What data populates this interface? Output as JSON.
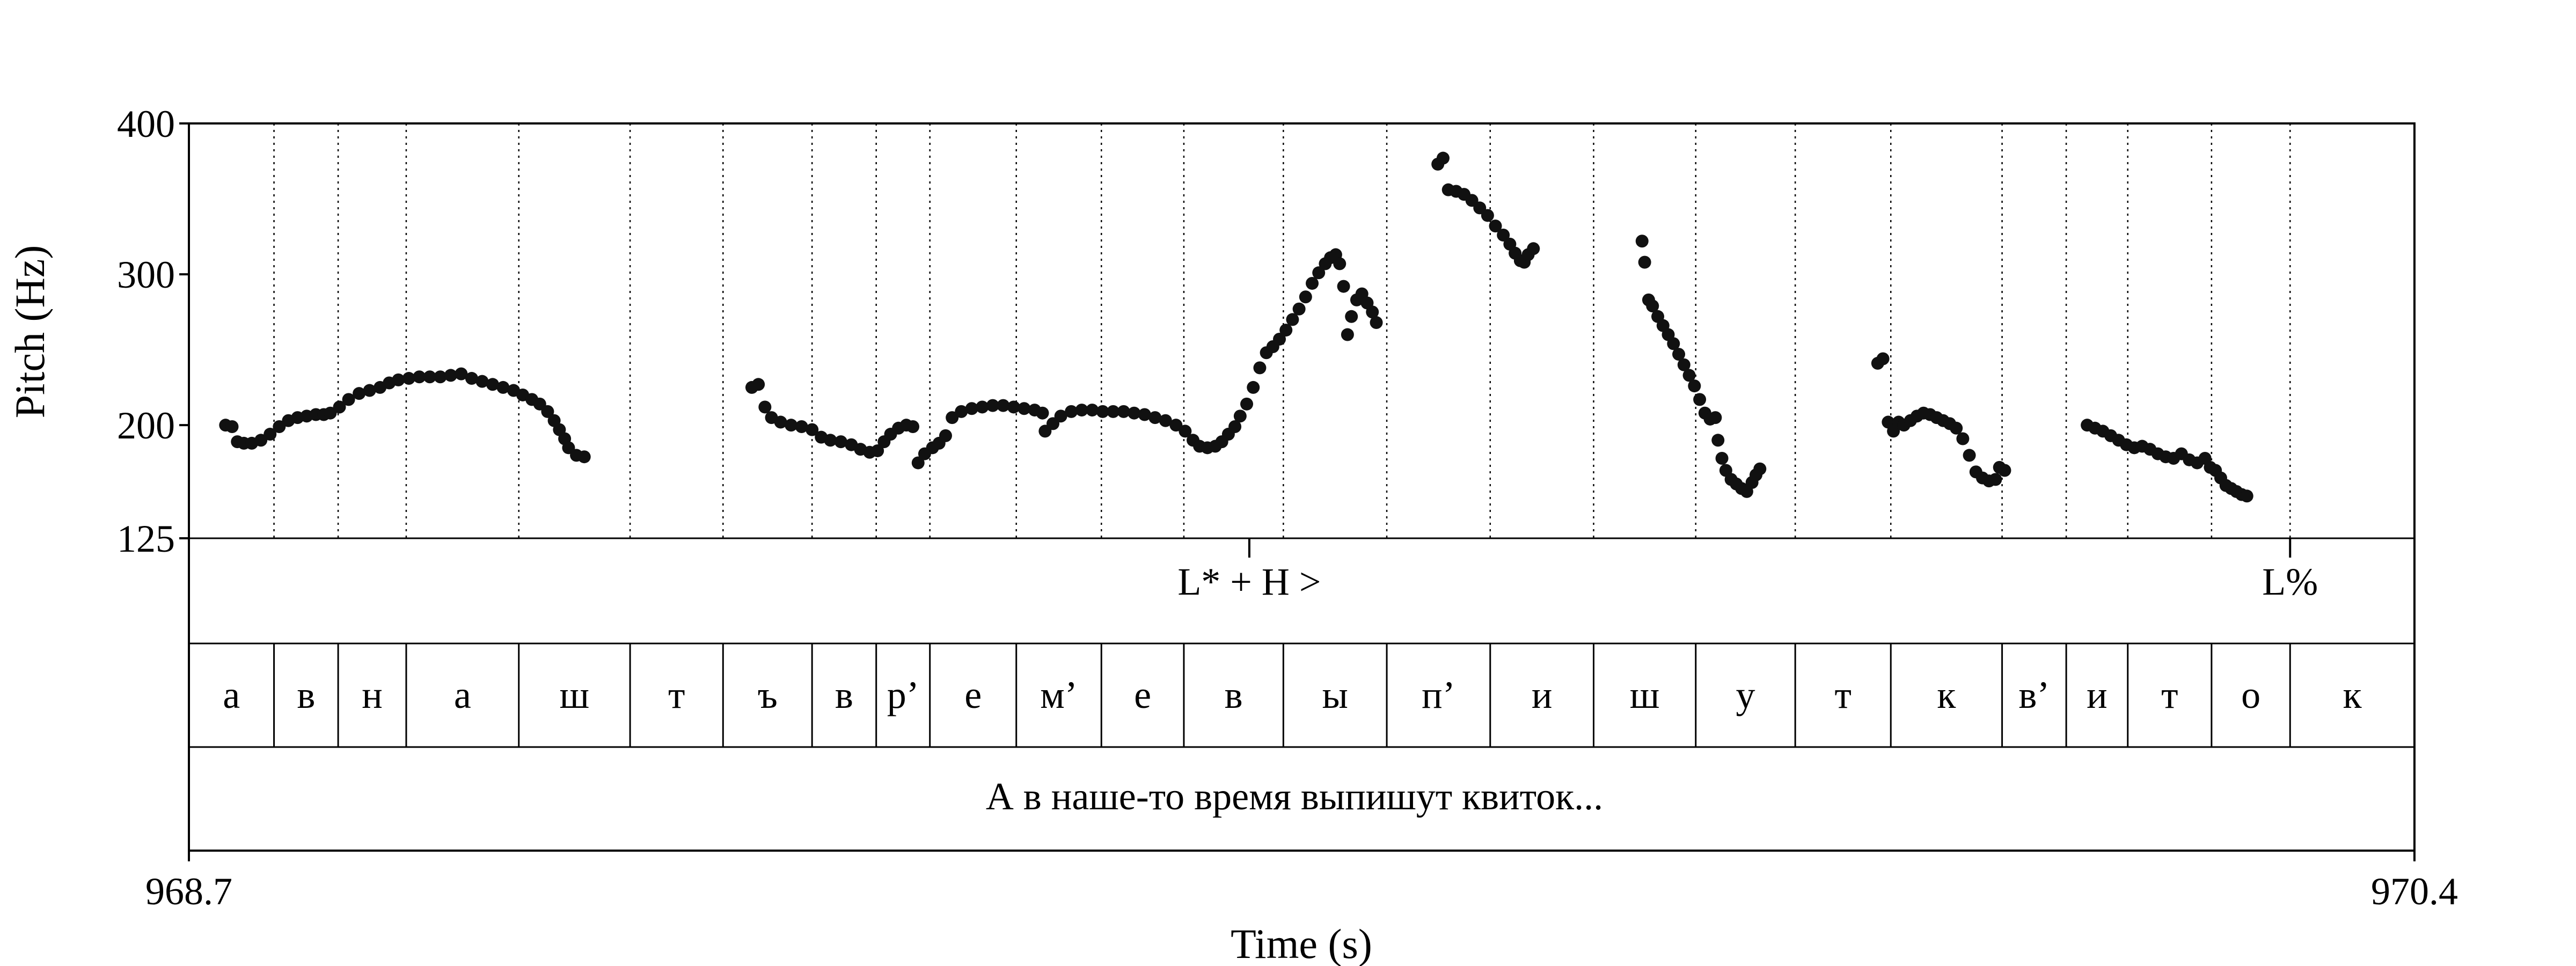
{
  "chart_data": {
    "type": "scatter",
    "xlabel": "Time (s)",
    "ylabel": "Pitch (Hz)",
    "xlim": [
      968.7,
      970.4
    ],
    "ylim": [
      125,
      400
    ],
    "x_edge_labels": [
      "968.7",
      "970.4"
    ],
    "y_ticks": [
      {
        "value": 400,
        "label": "400"
      },
      {
        "value": 300,
        "label": "300"
      },
      {
        "value": 200,
        "label": "200"
      },
      {
        "value": 125,
        "label": "125"
      }
    ],
    "boundaries": [
      968.765,
      968.814,
      968.866,
      968.952,
      969.037,
      969.108,
      969.176,
      969.225,
      969.266,
      969.332,
      969.397,
      969.46,
      969.536,
      969.615,
      969.694,
      969.773,
      969.851,
      969.927,
      970.0,
      970.085,
      970.134,
      970.181,
      970.245,
      970.305
    ],
    "segments": [
      "а",
      "в",
      "н",
      "а",
      "ш",
      "т",
      "ъ",
      "в",
      "р’",
      "е",
      "м’",
      "е",
      "в",
      "ы",
      "п’",
      "и",
      "ш",
      "у",
      "т",
      "к",
      "в’",
      "и",
      "т",
      "о",
      "к"
    ],
    "tones": [
      {
        "t": 969.51,
        "label": "L* + H >"
      },
      {
        "t": 970.305,
        "label": "L%"
      }
    ],
    "sentence": "А в наше-то время выпишут квиток...",
    "series": [
      {
        "points": [
          [
            968.728,
            200
          ],
          [
            968.733,
            199
          ],
          [
            968.737,
            189
          ],
          [
            968.742,
            188
          ],
          [
            968.748,
            188
          ],
          [
            968.755,
            190
          ],
          [
            968.762,
            194
          ],
          [
            968.769,
            199
          ],
          [
            968.776,
            203
          ],
          [
            968.783,
            205
          ],
          [
            968.79,
            206
          ],
          [
            968.797,
            207
          ],
          [
            968.803,
            207
          ],
          [
            968.808,
            208
          ],
          [
            968.815,
            212
          ],
          [
            968.822,
            217
          ],
          [
            968.83,
            221
          ],
          [
            968.838,
            223
          ],
          [
            968.846,
            225
          ],
          [
            968.853,
            228
          ],
          [
            968.86,
            230
          ],
          [
            968.868,
            231
          ],
          [
            968.876,
            232
          ],
          [
            968.884,
            232
          ],
          [
            968.892,
            232
          ],
          [
            968.9,
            233
          ],
          [
            968.908,
            234
          ],
          [
            968.916,
            231
          ],
          [
            968.924,
            229
          ],
          [
            968.932,
            227
          ],
          [
            968.94,
            225
          ],
          [
            968.948,
            223
          ],
          [
            968.955,
            220
          ],
          [
            968.962,
            217
          ],
          [
            968.968,
            214
          ],
          [
            968.974,
            209
          ],
          [
            968.979,
            203
          ],
          [
            968.983,
            197
          ],
          [
            968.987,
            191
          ],
          [
            968.99,
            185
          ],
          [
            968.996,
            180
          ],
          [
            969.002,
            179
          ]
        ]
      },
      {
        "points": [
          [
            969.13,
            225
          ],
          [
            969.135,
            227
          ],
          [
            969.14,
            212
          ],
          [
            969.145,
            205
          ],
          [
            969.152,
            202
          ],
          [
            969.16,
            200
          ],
          [
            969.168,
            199
          ],
          [
            969.176,
            197
          ],
          [
            969.183,
            192
          ],
          [
            969.19,
            190
          ],
          [
            969.198,
            189
          ],
          [
            969.206,
            187
          ],
          [
            969.213,
            184
          ],
          [
            969.22,
            182
          ],
          [
            969.226,
            183
          ],
          [
            969.231,
            189
          ],
          [
            969.236,
            194
          ],
          [
            969.242,
            198
          ],
          [
            969.248,
            200
          ],
          [
            969.253,
            199
          ],
          [
            969.257,
            175
          ],
          [
            969.262,
            181
          ],
          [
            969.268,
            185
          ],
          [
            969.273,
            188
          ],
          [
            969.278,
            193
          ],
          [
            969.283,
            205
          ],
          [
            969.29,
            209
          ],
          [
            969.298,
            211
          ],
          [
            969.306,
            212
          ],
          [
            969.314,
            213
          ],
          [
            969.322,
            213
          ],
          [
            969.33,
            212
          ],
          [
            969.338,
            211
          ],
          [
            969.346,
            210
          ],
          [
            969.352,
            208
          ],
          [
            969.354,
            196
          ],
          [
            969.36,
            201
          ],
          [
            969.366,
            206
          ],
          [
            969.374,
            209
          ],
          [
            969.382,
            210
          ],
          [
            969.39,
            210
          ],
          [
            969.398,
            209
          ],
          [
            969.406,
            209
          ],
          [
            969.414,
            209
          ],
          [
            969.422,
            208
          ],
          [
            969.43,
            207
          ],
          [
            969.438,
            205
          ],
          [
            969.446,
            203
          ],
          [
            969.454,
            200
          ],
          [
            969.461,
            196
          ],
          [
            969.467,
            190
          ],
          [
            969.472,
            186
          ],
          [
            969.478,
            185
          ],
          [
            969.484,
            186
          ],
          [
            969.489,
            189
          ],
          [
            969.494,
            194
          ],
          [
            969.499,
            199
          ],
          [
            969.503,
            206
          ],
          [
            969.508,
            214
          ],
          [
            969.513,
            225
          ],
          [
            969.518,
            238
          ],
          [
            969.523,
            248
          ],
          [
            969.528,
            252
          ],
          [
            969.533,
            257
          ],
          [
            969.538,
            263
          ],
          [
            969.543,
            270
          ],
          [
            969.548,
            277
          ],
          [
            969.553,
            285
          ],
          [
            969.558,
            294
          ],
          [
            969.563,
            301
          ],
          [
            969.568,
            307
          ],
          [
            969.572,
            311
          ],
          [
            969.576,
            313
          ],
          [
            969.579,
            307
          ],
          [
            969.582,
            292
          ],
          [
            969.585,
            260
          ],
          [
            969.588,
            272
          ],
          [
            969.592,
            283
          ],
          [
            969.596,
            287
          ],
          [
            969.6,
            281
          ],
          [
            969.604,
            275
          ],
          [
            969.607,
            268
          ]
        ]
      },
      {
        "points": [
          [
            969.654,
            373
          ],
          [
            969.658,
            377
          ],
          [
            969.662,
            356
          ],
          [
            969.668,
            355
          ],
          [
            969.674,
            353
          ],
          [
            969.68,
            349
          ],
          [
            969.686,
            344
          ],
          [
            969.692,
            339
          ],
          [
            969.698,
            332
          ],
          [
            969.704,
            326
          ],
          [
            969.709,
            320
          ],
          [
            969.713,
            314
          ],
          [
            969.717,
            309
          ],
          [
            969.72,
            308
          ],
          [
            969.723,
            313
          ],
          [
            969.727,
            317
          ]
        ]
      },
      {
        "points": [
          [
            969.81,
            322
          ],
          [
            969.812,
            308
          ],
          [
            969.815,
            283
          ],
          [
            969.818,
            279
          ],
          [
            969.822,
            272
          ],
          [
            969.826,
            266
          ],
          [
            969.83,
            260
          ],
          [
            969.834,
            254
          ],
          [
            969.838,
            247
          ],
          [
            969.842,
            240
          ],
          [
            969.846,
            233
          ],
          [
            969.85,
            226
          ],
          [
            969.854,
            217
          ],
          [
            969.858,
            208
          ],
          [
            969.862,
            204
          ],
          [
            969.866,
            205
          ],
          [
            969.868,
            190
          ],
          [
            969.871,
            178
          ],
          [
            969.874,
            170
          ],
          [
            969.878,
            164
          ],
          [
            969.882,
            161
          ],
          [
            969.886,
            158
          ],
          [
            969.89,
            156
          ],
          [
            969.894,
            162
          ],
          [
            969.897,
            167
          ],
          [
            969.9,
            171
          ]
        ]
      },
      {
        "points": [
          [
            969.99,
            241
          ],
          [
            969.994,
            244
          ],
          [
            969.998,
            202
          ],
          [
            970.002,
            196
          ],
          [
            970.006,
            202
          ],
          [
            970.01,
            200
          ],
          [
            970.015,
            203
          ],
          [
            970.02,
            206
          ],
          [
            970.025,
            208
          ],
          [
            970.03,
            207
          ],
          [
            970.035,
            205
          ],
          [
            970.04,
            203
          ],
          [
            970.045,
            201
          ],
          [
            970.05,
            198
          ],
          [
            970.055,
            191
          ],
          [
            970.06,
            180
          ],
          [
            970.065,
            169
          ],
          [
            970.07,
            165
          ],
          [
            970.075,
            163
          ],
          [
            970.08,
            164
          ],
          [
            970.083,
            172
          ],
          [
            970.087,
            170
          ]
        ]
      },
      {
        "points": [
          [
            970.15,
            200
          ],
          [
            970.156,
            198
          ],
          [
            970.162,
            196
          ],
          [
            970.168,
            193
          ],
          [
            970.174,
            190
          ],
          [
            970.18,
            187
          ],
          [
            970.186,
            185
          ],
          [
            970.192,
            186
          ],
          [
            970.198,
            184
          ],
          [
            970.204,
            181
          ],
          [
            970.21,
            179
          ],
          [
            970.216,
            178
          ],
          [
            970.222,
            181
          ],
          [
            970.228,
            177
          ],
          [
            970.234,
            175
          ],
          [
            970.24,
            178
          ],
          [
            970.244,
            172
          ],
          [
            970.248,
            170
          ],
          [
            970.252,
            165
          ],
          [
            970.256,
            160
          ],
          [
            970.26,
            158
          ],
          [
            970.264,
            156
          ],
          [
            970.268,
            154
          ],
          [
            970.272,
            153
          ]
        ]
      }
    ]
  }
}
